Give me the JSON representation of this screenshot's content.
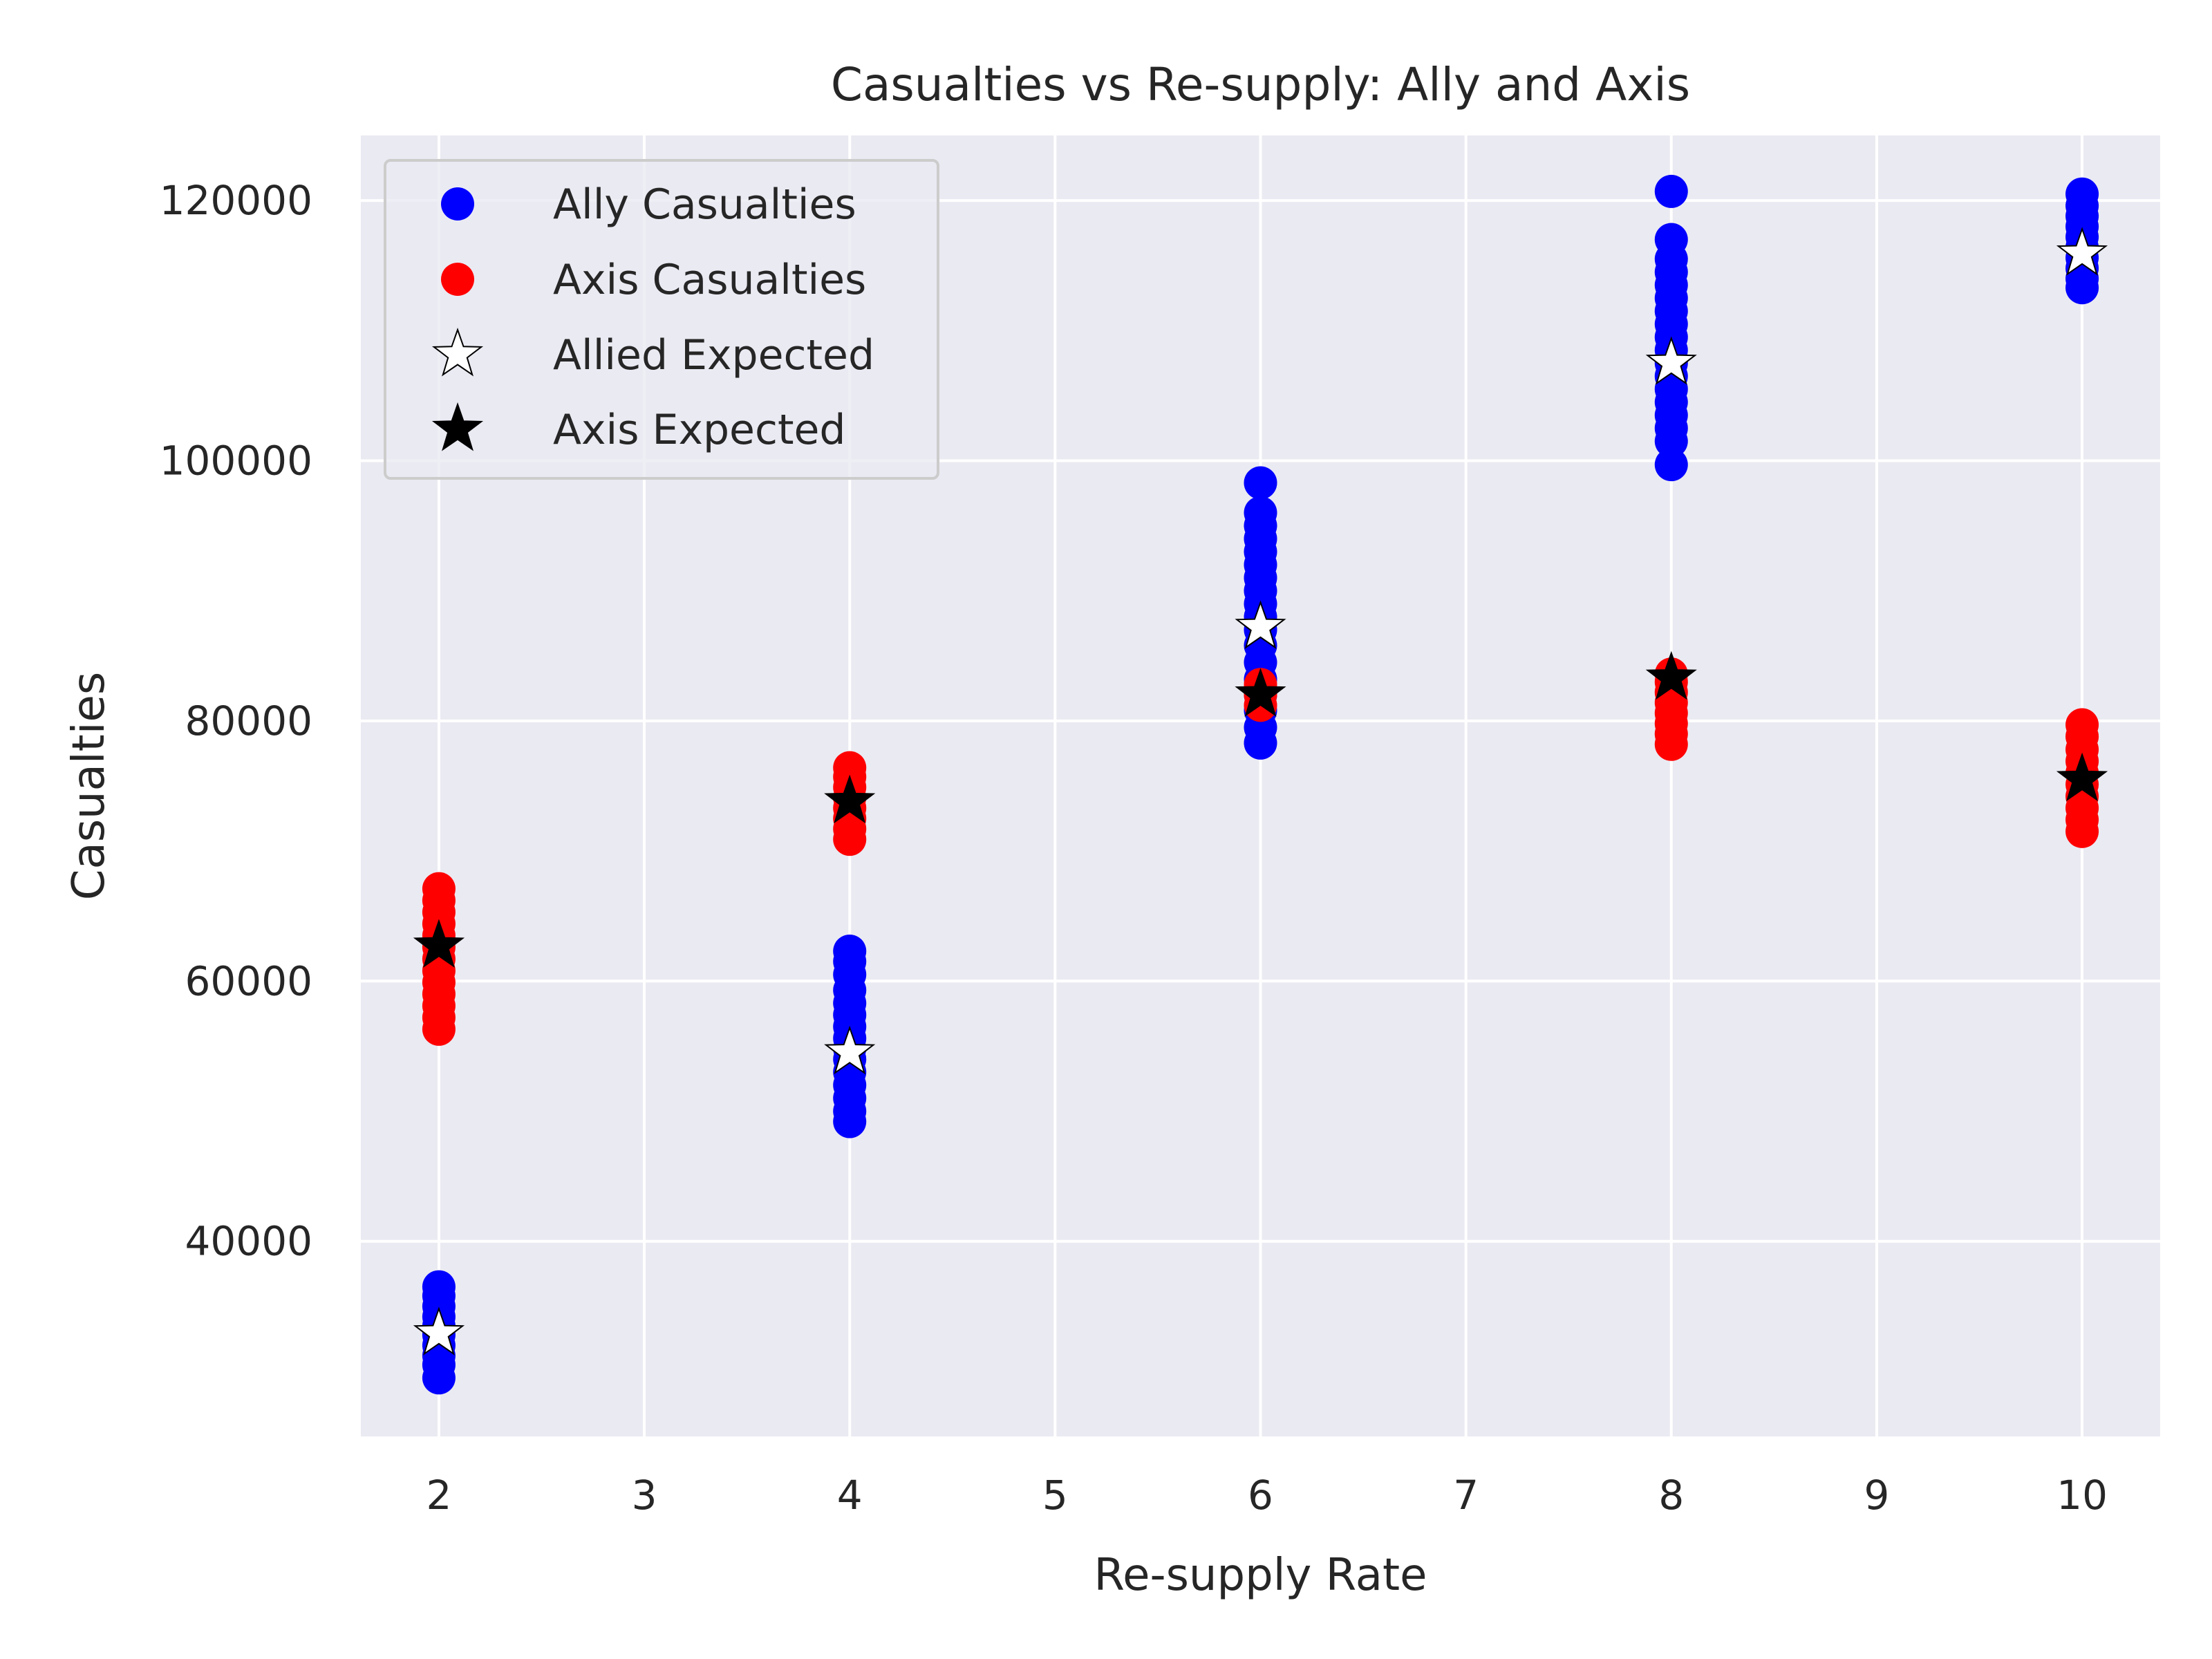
{
  "chart_data": {
    "type": "scatter",
    "title": "Casualties vs Re-supply: Ally and Axis",
    "xlabel": "Re-supply Rate",
    "ylabel": "Casualties",
    "xlim": [
      1.62,
      10.38
    ],
    "ylim": [
      25000,
      125000
    ],
    "xticks": [
      2,
      3,
      4,
      5,
      6,
      7,
      8,
      9,
      10
    ],
    "yticks": [
      40000,
      60000,
      80000,
      100000,
      120000
    ],
    "grid": true,
    "legend_position": "top-left",
    "legend_labels": [
      "Ally Casualties",
      "Axis Casualties",
      "Allied Expected",
      "Axis Expected"
    ],
    "series": [
      {
        "name": "Ally Casualties",
        "kind": "dot",
        "color": "#0000ff",
        "points": [
          [
            2,
            29500
          ],
          [
            2,
            30500
          ],
          [
            2,
            31200
          ],
          [
            2,
            32000
          ],
          [
            2,
            32800
          ],
          [
            2,
            33500
          ],
          [
            2,
            34200
          ],
          [
            2,
            35000
          ],
          [
            2,
            35800
          ],
          [
            2,
            36500
          ],
          [
            4,
            49200
          ],
          [
            4,
            50000
          ],
          [
            4,
            51000
          ],
          [
            4,
            52000
          ],
          [
            4,
            53000
          ],
          [
            4,
            54000
          ],
          [
            4,
            54800
          ],
          [
            4,
            55600
          ],
          [
            4,
            56500
          ],
          [
            4,
            57400
          ],
          [
            4,
            58300
          ],
          [
            4,
            59300
          ],
          [
            4,
            60500
          ],
          [
            4,
            61500
          ],
          [
            4,
            62300
          ],
          [
            6,
            78300
          ],
          [
            6,
            79500
          ],
          [
            6,
            80800
          ],
          [
            6,
            82000
          ],
          [
            6,
            83200
          ],
          [
            6,
            84500
          ],
          [
            6,
            85800
          ],
          [
            6,
            87000
          ],
          [
            6,
            88000
          ],
          [
            6,
            89000
          ],
          [
            6,
            90000
          ],
          [
            6,
            91000
          ],
          [
            6,
            92000
          ],
          [
            6,
            93000
          ],
          [
            6,
            94000
          ],
          [
            6,
            95000
          ],
          [
            6,
            96000
          ],
          [
            6,
            98300
          ],
          [
            8,
            99700
          ],
          [
            8,
            101500
          ],
          [
            8,
            102500
          ],
          [
            8,
            103500
          ],
          [
            8,
            104500
          ],
          [
            8,
            105500
          ],
          [
            8,
            106500
          ],
          [
            8,
            107500
          ],
          [
            8,
            108500
          ],
          [
            8,
            109500
          ],
          [
            8,
            110500
          ],
          [
            8,
            111500
          ],
          [
            8,
            112500
          ],
          [
            8,
            113500
          ],
          [
            8,
            114500
          ],
          [
            8,
            115500
          ],
          [
            8,
            117000
          ],
          [
            8,
            120700
          ],
          [
            10,
            113300
          ],
          [
            10,
            114000
          ],
          [
            10,
            114800
          ],
          [
            10,
            115600
          ],
          [
            10,
            116400
          ],
          [
            10,
            117200
          ],
          [
            10,
            118000
          ],
          [
            10,
            118800
          ],
          [
            10,
            119600
          ],
          [
            10,
            120500
          ]
        ]
      },
      {
        "name": "Axis Casualties",
        "kind": "dot",
        "color": "#ff0000",
        "points": [
          [
            2,
            56300
          ],
          [
            2,
            57200
          ],
          [
            2,
            58100
          ],
          [
            2,
            59000
          ],
          [
            2,
            59900
          ],
          [
            2,
            60800
          ],
          [
            2,
            61700
          ],
          [
            2,
            62600
          ],
          [
            2,
            63500
          ],
          [
            2,
            64400
          ],
          [
            2,
            65300
          ],
          [
            2,
            66200
          ],
          [
            2,
            67100
          ],
          [
            4,
            70900
          ],
          [
            4,
            71700
          ],
          [
            4,
            72500
          ],
          [
            4,
            73300
          ],
          [
            4,
            74100
          ],
          [
            4,
            74900
          ],
          [
            4,
            75700
          ],
          [
            4,
            76400
          ],
          [
            6,
            81200
          ],
          [
            6,
            82000
          ],
          [
            6,
            82800
          ],
          [
            8,
            78200
          ],
          [
            8,
            79000
          ],
          [
            8,
            79800
          ],
          [
            8,
            80600
          ],
          [
            8,
            81400
          ],
          [
            8,
            82200
          ],
          [
            8,
            83000
          ],
          [
            8,
            83600
          ],
          [
            10,
            71500
          ],
          [
            10,
            72400
          ],
          [
            10,
            73300
          ],
          [
            10,
            74200
          ],
          [
            10,
            75100
          ],
          [
            10,
            76000
          ],
          [
            10,
            76900
          ],
          [
            10,
            77800
          ],
          [
            10,
            78800
          ],
          [
            10,
            79700
          ]
        ]
      },
      {
        "name": "Allied Expected",
        "kind": "star",
        "color": "#ffffff",
        "points": [
          [
            2,
            32900
          ],
          [
            4,
            54500
          ],
          [
            6,
            87200
          ],
          [
            8,
            107500
          ],
          [
            10,
            115900
          ]
        ]
      },
      {
        "name": "Axis Expected",
        "kind": "star",
        "color": "#000000",
        "points": [
          [
            2,
            62700
          ],
          [
            4,
            73800
          ],
          [
            6,
            82000
          ],
          [
            8,
            83300
          ],
          [
            10,
            75500
          ]
        ]
      }
    ],
    "colors": {
      "plot_background": "#eaeaf2",
      "grid": "#ffffff",
      "star_edge": "#000000",
      "legend_background": "#eaeaf2",
      "legend_border": "#cccccc"
    }
  }
}
